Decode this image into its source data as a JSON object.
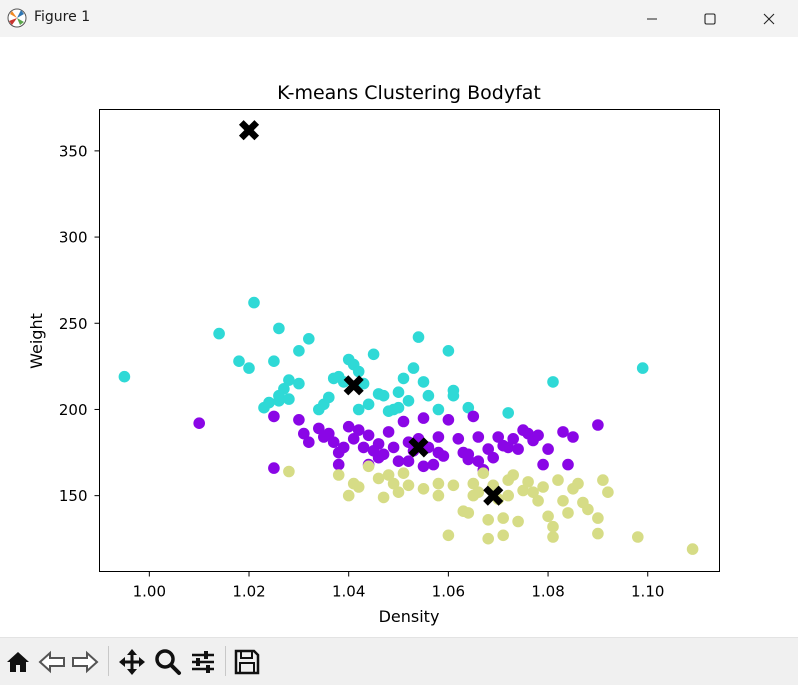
{
  "window": {
    "title": "Figure 1",
    "icon": "matplotlib-icon",
    "controls": [
      "minimize-icon",
      "maximize-icon",
      "close-icon"
    ]
  },
  "toolbar": {
    "tools": [
      "home-icon",
      "back-icon",
      "forward-icon",
      "pan-icon",
      "zoom-icon",
      "configure-subplots-icon",
      "save-icon"
    ]
  },
  "colors": {
    "cluster_purple": "#8a06e6",
    "cluster_cyan": "#2fd9d6",
    "cluster_olive": "#d6dc86",
    "centroid": "#000000"
  },
  "chart_data": {
    "type": "scatter",
    "title": "K-means Clustering Bodyfat",
    "xlabel": "Density",
    "ylabel": "Weight",
    "xlim": [
      0.99,
      1.1144
    ],
    "ylim": [
      106,
      374
    ],
    "xticks": [
      1.0,
      1.02,
      1.04,
      1.06,
      1.08,
      1.1
    ],
    "xtick_labels": [
      "1.00",
      "1.02",
      "1.04",
      "1.06",
      "1.08",
      "1.10"
    ],
    "yticks": [
      150,
      200,
      250,
      300,
      350
    ],
    "ytick_labels": [
      "150",
      "200",
      "250",
      "300",
      "350"
    ],
    "grid": false,
    "legend": "none",
    "series": [
      {
        "color": "#2fd9d6",
        "points": [
          [
            0.995,
            219
          ],
          [
            1.014,
            244
          ],
          [
            1.018,
            228
          ],
          [
            1.021,
            262
          ],
          [
            1.02,
            224
          ],
          [
            1.026,
            247
          ],
          [
            1.025,
            228
          ],
          [
            1.023,
            201
          ],
          [
            1.024,
            204
          ],
          [
            1.026,
            205
          ],
          [
            1.027,
            212
          ],
          [
            1.028,
            217
          ],
          [
            1.026,
            208
          ],
          [
            1.028,
            206
          ],
          [
            1.03,
            215
          ],
          [
            1.03,
            234
          ],
          [
            1.032,
            241
          ],
          [
            1.034,
            200
          ],
          [
            1.035,
            203
          ],
          [
            1.036,
            207
          ],
          [
            1.037,
            218
          ],
          [
            1.038,
            219
          ],
          [
            1.039,
            216
          ],
          [
            1.04,
            229
          ],
          [
            1.041,
            226
          ],
          [
            1.042,
            222
          ],
          [
            1.043,
            215
          ],
          [
            1.045,
            232
          ],
          [
            1.046,
            209
          ],
          [
            1.047,
            208
          ],
          [
            1.048,
            199
          ],
          [
            1.049,
            200
          ],
          [
            1.05,
            210
          ],
          [
            1.051,
            218
          ],
          [
            1.052,
            205
          ],
          [
            1.053,
            224
          ],
          [
            1.054,
            242
          ],
          [
            1.055,
            216
          ],
          [
            1.056,
            208
          ],
          [
            1.058,
            200
          ],
          [
            1.06,
            234
          ],
          [
            1.061,
            211
          ],
          [
            1.061,
            208
          ],
          [
            1.064,
            201
          ],
          [
            1.072,
            198
          ],
          [
            1.081,
            216
          ],
          [
            1.099,
            224
          ],
          [
            1.042,
            200
          ],
          [
            1.044,
            203
          ],
          [
            1.05,
            201
          ]
        ]
      },
      {
        "color": "#8a06e6",
        "points": [
          [
            1.01,
            192
          ],
          [
            1.025,
            166
          ],
          [
            1.025,
            196
          ],
          [
            1.03,
            194
          ],
          [
            1.031,
            186
          ],
          [
            1.032,
            181
          ],
          [
            1.034,
            189
          ],
          [
            1.035,
            184
          ],
          [
            1.036,
            186
          ],
          [
            1.037,
            181
          ],
          [
            1.038,
            175
          ],
          [
            1.038,
            168
          ],
          [
            1.039,
            178
          ],
          [
            1.04,
            190
          ],
          [
            1.041,
            183
          ],
          [
            1.042,
            188
          ],
          [
            1.043,
            178
          ],
          [
            1.044,
            185
          ],
          [
            1.044,
            168
          ],
          [
            1.046,
            172
          ],
          [
            1.047,
            174
          ],
          [
            1.048,
            187
          ],
          [
            1.049,
            178
          ],
          [
            1.05,
            170
          ],
          [
            1.051,
            193
          ],
          [
            1.052,
            181
          ],
          [
            1.053,
            176
          ],
          [
            1.054,
            183
          ],
          [
            1.055,
            195
          ],
          [
            1.056,
            178
          ],
          [
            1.057,
            168
          ],
          [
            1.058,
            184
          ],
          [
            1.059,
            173
          ],
          [
            1.06,
            194
          ],
          [
            1.062,
            183
          ],
          [
            1.063,
            175
          ],
          [
            1.064,
            174
          ],
          [
            1.065,
            196
          ],
          [
            1.066,
            170
          ],
          [
            1.067,
            165
          ],
          [
            1.068,
            177
          ],
          [
            1.069,
            172
          ],
          [
            1.07,
            184
          ],
          [
            1.071,
            179
          ],
          [
            1.072,
            178
          ],
          [
            1.073,
            183
          ],
          [
            1.074,
            177
          ],
          [
            1.075,
            188
          ],
          [
            1.076,
            186
          ],
          [
            1.077,
            182
          ],
          [
            1.078,
            185
          ],
          [
            1.079,
            168
          ],
          [
            1.08,
            177
          ],
          [
            1.083,
            187
          ],
          [
            1.084,
            168
          ],
          [
            1.085,
            184
          ],
          [
            1.09,
            191
          ],
          [
            1.046,
            180
          ],
          [
            1.052,
            170
          ],
          [
            1.064,
            171
          ],
          [
            1.055,
            167
          ],
          [
            1.058,
            175
          ],
          [
            1.045,
            176
          ],
          [
            1.066,
            184
          ]
        ]
      },
      {
        "color": "#d6dc86",
        "points": [
          [
            1.028,
            164
          ],
          [
            1.038,
            162
          ],
          [
            1.04,
            150
          ],
          [
            1.041,
            157
          ],
          [
            1.042,
            155
          ],
          [
            1.044,
            167
          ],
          [
            1.046,
            160
          ],
          [
            1.047,
            149
          ],
          [
            1.048,
            162
          ],
          [
            1.049,
            157
          ],
          [
            1.05,
            152
          ],
          [
            1.051,
            163
          ],
          [
            1.052,
            156
          ],
          [
            1.058,
            150
          ],
          [
            1.058,
            157
          ],
          [
            1.06,
            127
          ],
          [
            1.061,
            156
          ],
          [
            1.063,
            141
          ],
          [
            1.064,
            140
          ],
          [
            1.065,
            157
          ],
          [
            1.066,
            152
          ],
          [
            1.067,
            163
          ],
          [
            1.068,
            136
          ],
          [
            1.068,
            125
          ],
          [
            1.069,
            156
          ],
          [
            1.07,
            148
          ],
          [
            1.071,
            137
          ],
          [
            1.071,
            127
          ],
          [
            1.072,
            150
          ],
          [
            1.073,
            162
          ],
          [
            1.074,
            135
          ],
          [
            1.075,
            153
          ],
          [
            1.076,
            158
          ],
          [
            1.077,
            152
          ],
          [
            1.078,
            147
          ],
          [
            1.079,
            155
          ],
          [
            1.08,
            138
          ],
          [
            1.081,
            132
          ],
          [
            1.081,
            126
          ],
          [
            1.082,
            159
          ],
          [
            1.083,
            147
          ],
          [
            1.084,
            140
          ],
          [
            1.085,
            154
          ],
          [
            1.086,
            157
          ],
          [
            1.087,
            146
          ],
          [
            1.088,
            142
          ],
          [
            1.09,
            128
          ],
          [
            1.09,
            137
          ],
          [
            1.091,
            159
          ],
          [
            1.092,
            152
          ],
          [
            1.098,
            126
          ],
          [
            1.109,
            119
          ],
          [
            1.065,
            150
          ],
          [
            1.072,
            159
          ],
          [
            1.055,
            154
          ]
        ]
      }
    ],
    "centroids": {
      "color": "#000000",
      "marker": "X",
      "points": [
        [
          1.02,
          362
        ],
        [
          1.041,
          214
        ],
        [
          1.054,
          178
        ],
        [
          1.069,
          150
        ]
      ]
    }
  }
}
